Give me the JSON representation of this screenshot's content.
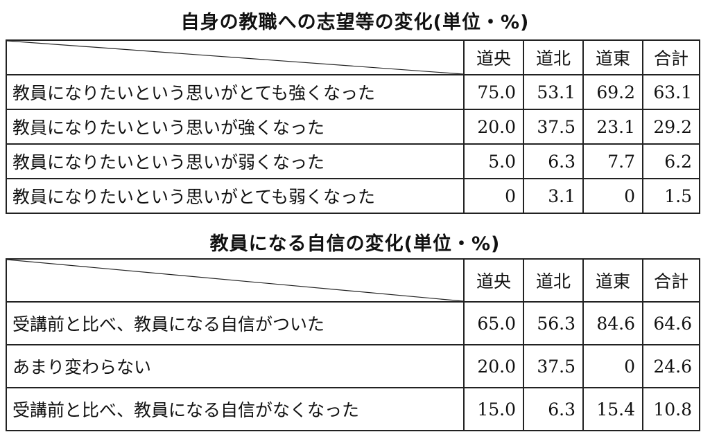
{
  "table1": {
    "title": "自身の教職への志望等の変化(単位・%)",
    "headers": [
      "道央",
      "道北",
      "道東",
      "合計"
    ],
    "rows": [
      {
        "label": "教員になりたいという思いがとても強くなった",
        "values": [
          "75.0",
          "53.1",
          "69.2",
          "63.1"
        ]
      },
      {
        "label": "教員になりたいという思いが強くなった",
        "values": [
          "20.0",
          "37.5",
          "23.1",
          "29.2"
        ]
      },
      {
        "label": "教員になりたいという思いが弱くなった",
        "values": [
          "5.0",
          "6.3",
          "7.7",
          "6.2"
        ]
      },
      {
        "label": "教員になりたいという思いがとても弱くなった",
        "values": [
          "0",
          "3.1",
          "0",
          "1.5"
        ]
      }
    ]
  },
  "table2": {
    "title": "教員になる自信の変化(単位・%)",
    "headers": [
      "道央",
      "道北",
      "道東",
      "合計"
    ],
    "rows": [
      {
        "label": "受講前と比べ、教員になる自信がついた",
        "values": [
          "65.0",
          "56.3",
          "84.6",
          "64.6"
        ]
      },
      {
        "label": "あまり変わらない",
        "values": [
          "20.0",
          "37.5",
          "0",
          "24.6"
        ]
      },
      {
        "label": "受講前と比べ、教員になる自信がなくなった",
        "values": [
          "15.0",
          "6.3",
          "15.4",
          "10.8"
        ]
      }
    ]
  }
}
